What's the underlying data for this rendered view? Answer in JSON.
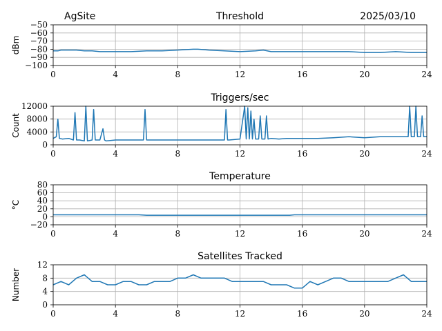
{
  "header": {
    "site": "AgSite",
    "date": "2025/03/10"
  },
  "chart_data": [
    {
      "type": "line",
      "title": "Threshold",
      "ylabel": "dBm",
      "xlim": [
        0,
        24
      ],
      "ylim": [
        -100,
        -50
      ],
      "xticks": [
        "0",
        "4",
        "8",
        "12",
        "16",
        "20",
        "24"
      ],
      "yticks": [
        "−50",
        "−60",
        "−70",
        "−80",
        "−90",
        "−100"
      ],
      "ytick_values": [
        -50,
        -60,
        -70,
        -80,
        -90,
        -100
      ],
      "grid": true,
      "color": "#1f77b4",
      "x": [
        0,
        0.3,
        0.5,
        1,
        1.5,
        2,
        2.5,
        3,
        4,
        5,
        6,
        7,
        8,
        9,
        9.3,
        10,
        11,
        12,
        13,
        13.5,
        14,
        15,
        16,
        17,
        18,
        19,
        20,
        21,
        22,
        23,
        24
      ],
      "y": [
        -82,
        -82,
        -81,
        -81,
        -81,
        -82,
        -82,
        -83,
        -83,
        -83,
        -82,
        -82,
        -81,
        -80,
        -80,
        -81,
        -82,
        -83,
        -82,
        -81,
        -83,
        -83,
        -83,
        -83,
        -83,
        -83,
        -84,
        -84,
        -83,
        -84,
        -84
      ]
    },
    {
      "type": "line",
      "title": "Triggers/sec",
      "ylabel": "Count",
      "xlim": [
        0,
        24
      ],
      "ylim": [
        0,
        12000
      ],
      "xticks": [
        "0",
        "4",
        "8",
        "12",
        "16",
        "20",
        "24"
      ],
      "yticks": [
        "0",
        "4000",
        "8000",
        "12000"
      ],
      "ytick_values": [
        0,
        4000,
        8000,
        12000
      ],
      "grid": true,
      "color": "#1f77b4",
      "x": [
        0,
        0.2,
        0.3,
        0.4,
        0.6,
        1,
        1.3,
        1.4,
        1.5,
        1.7,
        2.0,
        2.1,
        2.2,
        2.5,
        2.6,
        2.7,
        3,
        3.2,
        3.3,
        3.4,
        4,
        5,
        5.8,
        5.9,
        6.0,
        7,
        8,
        9,
        10,
        11,
        11.1,
        11.2,
        11.3,
        12,
        12.3,
        12.4,
        12.5,
        12.6,
        12.7,
        12.8,
        12.9,
        13.0,
        13.2,
        13.3,
        13.4,
        13.6,
        13.7,
        13.8,
        14,
        14.5,
        15,
        16,
        17,
        18,
        19,
        20,
        21,
        22,
        22.8,
        22.9,
        23.0,
        23.2,
        23.3,
        23.4,
        23.6,
        23.7,
        23.8,
        24
      ],
      "y": [
        2000,
        2500,
        8000,
        2000,
        1800,
        2000,
        1500,
        10000,
        1500,
        1500,
        1200,
        12000,
        1200,
        1500,
        11000,
        1500,
        1500,
        5000,
        1500,
        1200,
        1500,
        1500,
        1500,
        11000,
        1500,
        1500,
        1500,
        1500,
        1500,
        1500,
        11000,
        1500,
        1500,
        1800,
        12000,
        1800,
        11500,
        1800,
        10500,
        1800,
        8000,
        1800,
        1800,
        9000,
        1800,
        1800,
        9000,
        1800,
        2000,
        1800,
        2000,
        2000,
        2000,
        2200,
        2500,
        2200,
        2500,
        2500,
        2500,
        12000,
        2500,
        2500,
        12000,
        2500,
        2500,
        9000,
        2500,
        2500
      ]
    },
    {
      "type": "line",
      "title": "Temperature",
      "ylabel": "°C",
      "xlim": [
        0,
        24
      ],
      "ylim": [
        -20,
        80
      ],
      "xticks": [
        "0",
        "4",
        "8",
        "12",
        "16",
        "20",
        "24"
      ],
      "yticks": [
        "−20",
        "0",
        "20",
        "40",
        "60",
        "80"
      ],
      "ytick_values": [
        -20,
        0,
        20,
        40,
        60,
        80
      ],
      "grid": true,
      "color": "#1f77b4",
      "x": [
        0,
        2,
        4,
        5.5,
        6,
        8,
        10,
        12,
        14,
        15.2,
        15.5,
        16,
        18,
        20,
        22,
        24
      ],
      "y": [
        5,
        5,
        5,
        5,
        4,
        4,
        4,
        4,
        4,
        4,
        5,
        5,
        5,
        5,
        5,
        5
      ]
    },
    {
      "type": "line",
      "title": "Satellites Tracked",
      "ylabel": "Number",
      "xlim": [
        0,
        24
      ],
      "ylim": [
        0,
        12
      ],
      "xticks": [
        "0",
        "4",
        "8",
        "12",
        "16",
        "20",
        "24"
      ],
      "yticks": [
        "0",
        "4",
        "8",
        "12"
      ],
      "ytick_values": [
        0,
        4,
        8,
        12
      ],
      "grid": true,
      "color": "#1f77b4",
      "x": [
        0,
        0.5,
        1,
        1.5,
        2,
        2.5,
        3,
        3.5,
        4,
        4.5,
        5,
        5.5,
        6,
        6.5,
        7,
        7.5,
        8,
        8.5,
        9,
        9.5,
        10,
        10.5,
        11,
        11.5,
        12,
        12.5,
        13,
        13.5,
        14,
        14.5,
        15,
        15.5,
        16,
        16.5,
        17,
        17.5,
        18,
        18.5,
        19,
        19.5,
        20,
        20.5,
        21,
        21.5,
        22,
        22.5,
        23,
        23.5,
        24
      ],
      "y": [
        6,
        7,
        6,
        8,
        9,
        7,
        7,
        6,
        6,
        7,
        7,
        6,
        6,
        7,
        7,
        7,
        8,
        8,
        9,
        8,
        8,
        8,
        8,
        7,
        7,
        7,
        7,
        7,
        6,
        6,
        6,
        5,
        5,
        7,
        6,
        7,
        8,
        8,
        7,
        7,
        7,
        7,
        7,
        7,
        8,
        9,
        7,
        7,
        7
      ]
    }
  ]
}
